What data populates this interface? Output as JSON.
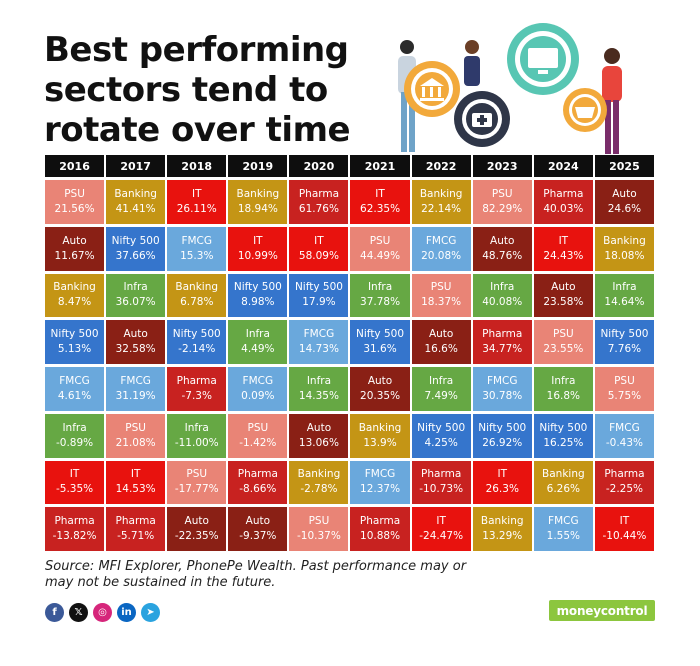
{
  "title": {
    "line1": "Best performing",
    "line2": "sectors tend to",
    "line3": "rotate over time"
  },
  "chart_data": {
    "type": "table",
    "years": [
      "2016",
      "2017",
      "2018",
      "2019",
      "2020",
      "2021",
      "2022",
      "2023",
      "2024",
      "2025"
    ],
    "columns": [
      [
        [
          "PSU",
          "21.56%"
        ],
        [
          "Auto",
          "11.67%"
        ],
        [
          "Banking",
          "8.47%"
        ],
        [
          "Nifty 500",
          "5.13%"
        ],
        [
          "FMCG",
          "4.61%"
        ],
        [
          "Infra",
          "-0.89%"
        ],
        [
          "IT",
          "-5.35%"
        ],
        [
          "Pharma",
          "-13.82%"
        ]
      ],
      [
        [
          "Banking",
          "41.41%"
        ],
        [
          "Nifty 500",
          "37.66%"
        ],
        [
          "Infra",
          "36.07%"
        ],
        [
          "Auto",
          "32.58%"
        ],
        [
          "FMCG",
          "31.19%"
        ],
        [
          "PSU",
          "21.08%"
        ],
        [
          "IT",
          "14.53%"
        ],
        [
          "Pharma",
          "-5.71%"
        ]
      ],
      [
        [
          "IT",
          "26.11%"
        ],
        [
          "FMCG",
          "15.3%"
        ],
        [
          "Banking",
          "6.78%"
        ],
        [
          "Nifty 500",
          "-2.14%"
        ],
        [
          "Pharma",
          "-7.3%"
        ],
        [
          "Infra",
          "-11.00%"
        ],
        [
          "PSU",
          "-17.77%"
        ],
        [
          "Auto",
          "-22.35%"
        ]
      ],
      [
        [
          "Banking",
          "18.94%"
        ],
        [
          "IT",
          "10.99%"
        ],
        [
          "Nifty 500",
          "8.98%"
        ],
        [
          "Infra",
          "4.49%"
        ],
        [
          "FMCG",
          "0.09%"
        ],
        [
          "PSU",
          "-1.42%"
        ],
        [
          "Pharma",
          "-8.66%"
        ],
        [
          "Auto",
          "-9.37%"
        ]
      ],
      [
        [
          "Pharma",
          "61.76%"
        ],
        [
          "IT",
          "58.09%"
        ],
        [
          "Nifty 500",
          "17.9%"
        ],
        [
          "FMCG",
          "14.73%"
        ],
        [
          "Infra",
          "14.35%"
        ],
        [
          "Auto",
          "13.06%"
        ],
        [
          "Banking",
          "-2.78%"
        ],
        [
          "PSU",
          "-10.37%"
        ]
      ],
      [
        [
          "IT",
          "62.35%"
        ],
        [
          "PSU",
          "44.49%"
        ],
        [
          "Infra",
          "37.78%"
        ],
        [
          "Nifty 500",
          "31.6%"
        ],
        [
          "Auto",
          "20.35%"
        ],
        [
          "Banking",
          "13.9%"
        ],
        [
          "FMCG",
          "12.37%"
        ],
        [
          "Pharma",
          "10.88%"
        ]
      ],
      [
        [
          "Banking",
          "22.14%"
        ],
        [
          "FMCG",
          "20.08%"
        ],
        [
          "PSU",
          "18.37%"
        ],
        [
          "Auto",
          "16.6%"
        ],
        [
          "Infra",
          "7.49%"
        ],
        [
          "Nifty 500",
          "4.25%"
        ],
        [
          "Pharma",
          "-10.73%"
        ],
        [
          "IT",
          "-24.47%"
        ]
      ],
      [
        [
          "PSU",
          "82.29%"
        ],
        [
          "Auto",
          "48.76%"
        ],
        [
          "Infra",
          "40.08%"
        ],
        [
          "Pharma",
          "34.77%"
        ],
        [
          "FMCG",
          "30.78%"
        ],
        [
          "Nifty 500",
          "26.92%"
        ],
        [
          "IT",
          "26.3%"
        ],
        [
          "Banking",
          "13.29%"
        ]
      ],
      [
        [
          "Pharma",
          "40.03%"
        ],
        [
          "IT",
          "24.43%"
        ],
        [
          "Auto",
          "23.58%"
        ],
        [
          "PSU",
          "23.55%"
        ],
        [
          "Infra",
          "16.8%"
        ],
        [
          "Nifty 500",
          "16.25%"
        ],
        [
          "Banking",
          "6.26%"
        ],
        [
          "FMCG",
          "1.55%"
        ]
      ],
      [
        [
          "Auto",
          "24.6%"
        ],
        [
          "Banking",
          "18.08%"
        ],
        [
          "Infra",
          "14.64%"
        ],
        [
          "Nifty 500",
          "7.76%"
        ],
        [
          "PSU",
          "5.75%"
        ],
        [
          "FMCG",
          "-0.43%"
        ],
        [
          "Pharma",
          "-2.25%"
        ],
        [
          "IT",
          "-10.44%"
        ]
      ]
    ],
    "sector_colors": {
      "PSU": "#e98476",
      "Auto": "#8a2015",
      "Banking": "#c49515",
      "Nifty 500": "#3575cc",
      "FMCG": "#6aa8dc",
      "Infra": "#66a844",
      "IT": "#e8120e",
      "Pharma": "#c82220"
    }
  },
  "source": "Source: MFI Explorer, PhonePe Wealth. Past performance may or may not be sustained in the future.",
  "socials": [
    {
      "icon": "facebook-icon",
      "glyph": "f",
      "color": "#3b5998"
    },
    {
      "icon": "x-icon",
      "glyph": "𝕏",
      "color": "#111111"
    },
    {
      "icon": "instagram-icon",
      "glyph": "◎",
      "color": "#d6267b"
    },
    {
      "icon": "linkedin-icon",
      "glyph": "in",
      "color": "#0a66c2"
    },
    {
      "icon": "telegram-icon",
      "glyph": "➤",
      "color": "#2aa3df"
    }
  ],
  "logo": "moneycontrol"
}
